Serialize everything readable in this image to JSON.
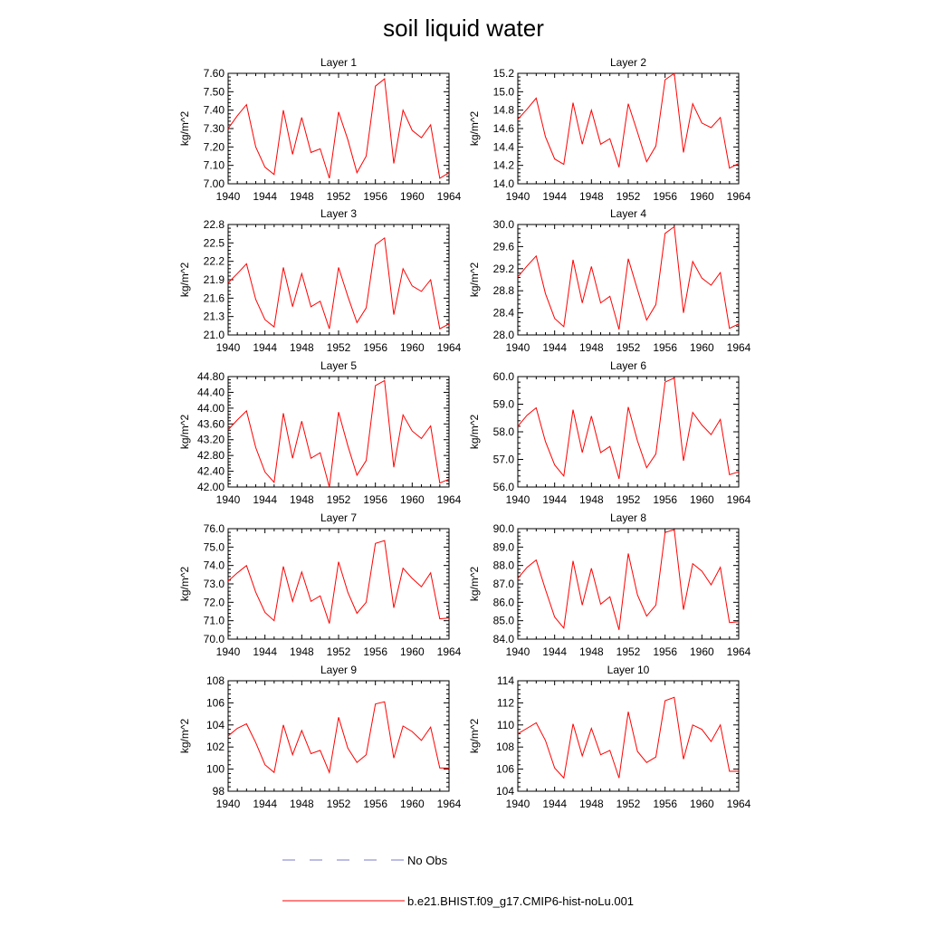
{
  "title": "soil liquid water",
  "colors": {
    "model": "#ff0000",
    "obs": "#7b7bc8",
    "axis": "#000000"
  },
  "legend": {
    "obs_label": "No Obs",
    "model_label": "b.e21.BHIST.f09_g17.CMIP6-hist-noLu.001"
  },
  "chart_data": [
    {
      "type": "line",
      "title": "Layer 1",
      "ylabel": "kg/m^2",
      "xlim": [
        1940,
        1964
      ],
      "xticks": [
        "1940",
        "1944",
        "1948",
        "1952",
        "1956",
        "1960",
        "1964"
      ],
      "ylim": [
        7.0,
        7.6
      ],
      "yticks": [
        "7.00",
        "7.10",
        "7.20",
        "7.30",
        "7.40",
        "7.50",
        "7.60"
      ],
      "series": [
        {
          "x": [
            1940,
            1941,
            1942,
            1943,
            1944,
            1945,
            1946,
            1947,
            1948,
            1949,
            1950,
            1951,
            1952,
            1953,
            1954,
            1955,
            1956,
            1957,
            1958,
            1959,
            1960,
            1961,
            1962,
            1963,
            1964
          ],
          "values": [
            7.3,
            7.37,
            7.43,
            7.2,
            7.09,
            7.05,
            7.4,
            7.16,
            7.36,
            7.17,
            7.19,
            7.03,
            7.39,
            7.24,
            7.06,
            7.15,
            7.53,
            7.57,
            7.11,
            7.4,
            7.29,
            7.25,
            7.32,
            7.03,
            7.06
          ]
        }
      ]
    },
    {
      "type": "line",
      "title": "Layer 2",
      "ylabel": "kg/m^2",
      "xlim": [
        1940,
        1964
      ],
      "xticks": [
        "1940",
        "1944",
        "1948",
        "1952",
        "1956",
        "1960",
        "1964"
      ],
      "ylim": [
        14.0,
        15.2
      ],
      "yticks": [
        "14.0",
        "14.2",
        "14.4",
        "14.6",
        "14.8",
        "15.0",
        "15.2"
      ],
      "series": [
        {
          "x": [
            1940,
            1941,
            1942,
            1943,
            1944,
            1945,
            1946,
            1947,
            1948,
            1949,
            1950,
            1951,
            1952,
            1953,
            1954,
            1955,
            1956,
            1957,
            1958,
            1959,
            1960,
            1961,
            1962,
            1963,
            1964
          ],
          "values": [
            14.7,
            14.81,
            14.93,
            14.51,
            14.27,
            14.21,
            14.88,
            14.43,
            14.8,
            14.43,
            14.49,
            14.18,
            14.87,
            14.56,
            14.24,
            14.41,
            15.13,
            15.2,
            14.34,
            14.87,
            14.66,
            14.61,
            14.72,
            14.17,
            14.22
          ]
        }
      ]
    },
    {
      "type": "line",
      "title": "Layer 3",
      "ylabel": "kg/m^2",
      "xlim": [
        1940,
        1964
      ],
      "xticks": [
        "1940",
        "1944",
        "1948",
        "1952",
        "1956",
        "1960",
        "1964"
      ],
      "ylim": [
        21.0,
        22.8
      ],
      "yticks": [
        "21.0",
        "21.3",
        "21.6",
        "21.9",
        "22.2",
        "22.5",
        "22.8"
      ],
      "series": [
        {
          "x": [
            1940,
            1941,
            1942,
            1943,
            1944,
            1945,
            1946,
            1947,
            1948,
            1949,
            1950,
            1951,
            1952,
            1953,
            1954,
            1955,
            1956,
            1957,
            1958,
            1959,
            1960,
            1961,
            1962,
            1963,
            1964
          ],
          "values": [
            21.85,
            22.0,
            22.16,
            21.58,
            21.25,
            21.13,
            22.1,
            21.46,
            22.0,
            21.46,
            21.55,
            21.1,
            22.1,
            21.63,
            21.2,
            21.44,
            22.47,
            22.58,
            21.33,
            22.08,
            21.8,
            21.71,
            21.9,
            21.1,
            21.18
          ]
        }
      ]
    },
    {
      "type": "line",
      "title": "Layer 4",
      "ylabel": "kg/m^2",
      "xlim": [
        1940,
        1964
      ],
      "xticks": [
        "1940",
        "1944",
        "1948",
        "1952",
        "1956",
        "1960",
        "1964"
      ],
      "ylim": [
        28.0,
        30.0
      ],
      "yticks": [
        "28.0",
        "28.4",
        "28.8",
        "29.2",
        "29.6",
        "30.0"
      ],
      "series": [
        {
          "x": [
            1940,
            1941,
            1942,
            1943,
            1944,
            1945,
            1946,
            1947,
            1948,
            1949,
            1950,
            1951,
            1952,
            1953,
            1954,
            1955,
            1956,
            1957,
            1958,
            1959,
            1960,
            1961,
            1962,
            1963,
            1964
          ],
          "values": [
            29.05,
            29.25,
            29.43,
            28.75,
            28.3,
            28.15,
            29.36,
            28.58,
            29.24,
            28.58,
            28.7,
            28.1,
            29.38,
            28.82,
            28.27,
            28.55,
            29.84,
            29.96,
            28.4,
            29.33,
            29.03,
            28.9,
            29.13,
            28.12,
            28.2
          ]
        }
      ]
    },
    {
      "type": "line",
      "title": "Layer 5",
      "ylabel": "kg/m^2",
      "xlim": [
        1940,
        1964
      ],
      "xticks": [
        "1940",
        "1944",
        "1948",
        "1952",
        "1956",
        "1960",
        "1964"
      ],
      "ylim": [
        42.0,
        44.8
      ],
      "yticks": [
        "42.00",
        "42.40",
        "42.80",
        "43.20",
        "43.60",
        "44.00",
        "44.40",
        "44.80"
      ],
      "series": [
        {
          "x": [
            1940,
            1941,
            1942,
            1943,
            1944,
            1945,
            1946,
            1947,
            1948,
            1949,
            1950,
            1951,
            1952,
            1953,
            1954,
            1955,
            1956,
            1957,
            1958,
            1959,
            1960,
            1961,
            1962,
            1963,
            1964
          ],
          "values": [
            43.45,
            43.7,
            43.93,
            43.0,
            42.38,
            42.12,
            43.87,
            42.73,
            43.67,
            42.73,
            42.87,
            42.0,
            43.9,
            43.05,
            42.3,
            42.67,
            44.57,
            44.7,
            42.5,
            43.83,
            43.42,
            43.23,
            43.55,
            42.1,
            42.2
          ]
        }
      ]
    },
    {
      "type": "line",
      "title": "Layer 6",
      "ylabel": "kg/m^2",
      "xlim": [
        1940,
        1964
      ],
      "xticks": [
        "1940",
        "1944",
        "1948",
        "1952",
        "1956",
        "1960",
        "1964"
      ],
      "ylim": [
        56.0,
        60.0
      ],
      "yticks": [
        "56.0",
        "57.0",
        "58.0",
        "59.0",
        "60.0"
      ],
      "series": [
        {
          "x": [
            1940,
            1941,
            1942,
            1943,
            1944,
            1945,
            1946,
            1947,
            1948,
            1949,
            1950,
            1951,
            1952,
            1953,
            1954,
            1955,
            1956,
            1957,
            1958,
            1959,
            1960,
            1961,
            1962,
            1963,
            1964
          ],
          "values": [
            58.2,
            58.6,
            58.87,
            57.65,
            56.8,
            56.4,
            58.8,
            57.25,
            58.57,
            57.25,
            57.47,
            56.3,
            58.9,
            57.67,
            56.7,
            57.2,
            59.8,
            59.95,
            56.95,
            58.7,
            58.25,
            57.9,
            58.45,
            56.45,
            56.55
          ]
        }
      ]
    },
    {
      "type": "line",
      "title": "Layer 7",
      "ylabel": "kg/m^2",
      "xlim": [
        1940,
        1964
      ],
      "xticks": [
        "1940",
        "1944",
        "1948",
        "1952",
        "1956",
        "1960",
        "1964"
      ],
      "ylim": [
        70.0,
        76.0
      ],
      "yticks": [
        "70.0",
        "71.0",
        "72.0",
        "73.0",
        "74.0",
        "75.0",
        "76.0"
      ],
      "series": [
        {
          "x": [
            1940,
            1941,
            1942,
            1943,
            1944,
            1945,
            1946,
            1947,
            1948,
            1949,
            1950,
            1951,
            1952,
            1953,
            1954,
            1955,
            1956,
            1957,
            1958,
            1959,
            1960,
            1961,
            1962,
            1963,
            1964
          ],
          "values": [
            73.15,
            73.6,
            74.0,
            72.55,
            71.45,
            71.0,
            73.95,
            72.05,
            73.65,
            72.05,
            72.35,
            70.85,
            74.2,
            72.55,
            71.4,
            72.0,
            75.2,
            75.35,
            71.7,
            73.85,
            73.3,
            72.85,
            73.6,
            71.1,
            71.15
          ]
        }
      ]
    },
    {
      "type": "line",
      "title": "Layer 8",
      "ylabel": "kg/m^2",
      "xlim": [
        1940,
        1964
      ],
      "xticks": [
        "1940",
        "1944",
        "1948",
        "1952",
        "1956",
        "1960",
        "1964"
      ],
      "ylim": [
        84.0,
        90.0
      ],
      "yticks": [
        "84.0",
        "85.0",
        "86.0",
        "87.0",
        "88.0",
        "89.0",
        "90.0"
      ],
      "series": [
        {
          "x": [
            1940,
            1941,
            1942,
            1943,
            1944,
            1945,
            1946,
            1947,
            1948,
            1949,
            1950,
            1951,
            1952,
            1953,
            1954,
            1955,
            1956,
            1957,
            1958,
            1959,
            1960,
            1961,
            1962,
            1963,
            1964
          ],
          "values": [
            87.3,
            87.9,
            88.3,
            86.7,
            85.2,
            84.6,
            88.25,
            85.85,
            87.85,
            85.9,
            86.3,
            84.5,
            88.65,
            86.4,
            85.25,
            85.85,
            89.8,
            89.95,
            85.6,
            88.1,
            87.7,
            86.95,
            87.9,
            84.9,
            84.95
          ]
        }
      ]
    },
    {
      "type": "line",
      "title": "Layer 9",
      "ylabel": "kg/m^2",
      "xlim": [
        1940,
        1964
      ],
      "xticks": [
        "1940",
        "1944",
        "1948",
        "1952",
        "1956",
        "1960",
        "1964"
      ],
      "ylim": [
        98,
        108
      ],
      "yticks": [
        "98",
        "100",
        "102",
        "104",
        "106",
        "108"
      ],
      "series": [
        {
          "x": [
            1940,
            1941,
            1942,
            1943,
            1944,
            1945,
            1946,
            1947,
            1948,
            1949,
            1950,
            1951,
            1952,
            1953,
            1954,
            1955,
            1956,
            1957,
            1958,
            1959,
            1960,
            1961,
            1962,
            1963,
            1964
          ],
          "values": [
            103.0,
            103.7,
            104.1,
            102.4,
            100.4,
            99.7,
            104.0,
            101.3,
            103.5,
            101.4,
            101.7,
            99.7,
            104.7,
            101.9,
            100.6,
            101.3,
            105.9,
            106.1,
            101.0,
            103.9,
            103.4,
            102.6,
            103.8,
            100.1,
            100.1
          ]
        }
      ]
    },
    {
      "type": "line",
      "title": "Layer 10",
      "ylabel": "kg/m^2",
      "xlim": [
        1940,
        1964
      ],
      "xticks": [
        "1940",
        "1944",
        "1948",
        "1952",
        "1956",
        "1960",
        "1964"
      ],
      "ylim": [
        104,
        114
      ],
      "yticks": [
        "104",
        "106",
        "108",
        "110",
        "112",
        "114"
      ],
      "series": [
        {
          "x": [
            1940,
            1941,
            1942,
            1943,
            1944,
            1945,
            1946,
            1947,
            1948,
            1949,
            1950,
            1951,
            1952,
            1953,
            1954,
            1955,
            1956,
            1957,
            1958,
            1959,
            1960,
            1961,
            1962,
            1963,
            1964
          ],
          "values": [
            109.2,
            109.7,
            110.2,
            108.6,
            106.1,
            105.2,
            110.1,
            107.2,
            109.7,
            107.3,
            107.7,
            105.2,
            111.2,
            107.6,
            106.6,
            107.1,
            112.2,
            112.5,
            106.9,
            110.0,
            109.6,
            108.5,
            110.0,
            105.8,
            105.8
          ]
        }
      ]
    }
  ]
}
